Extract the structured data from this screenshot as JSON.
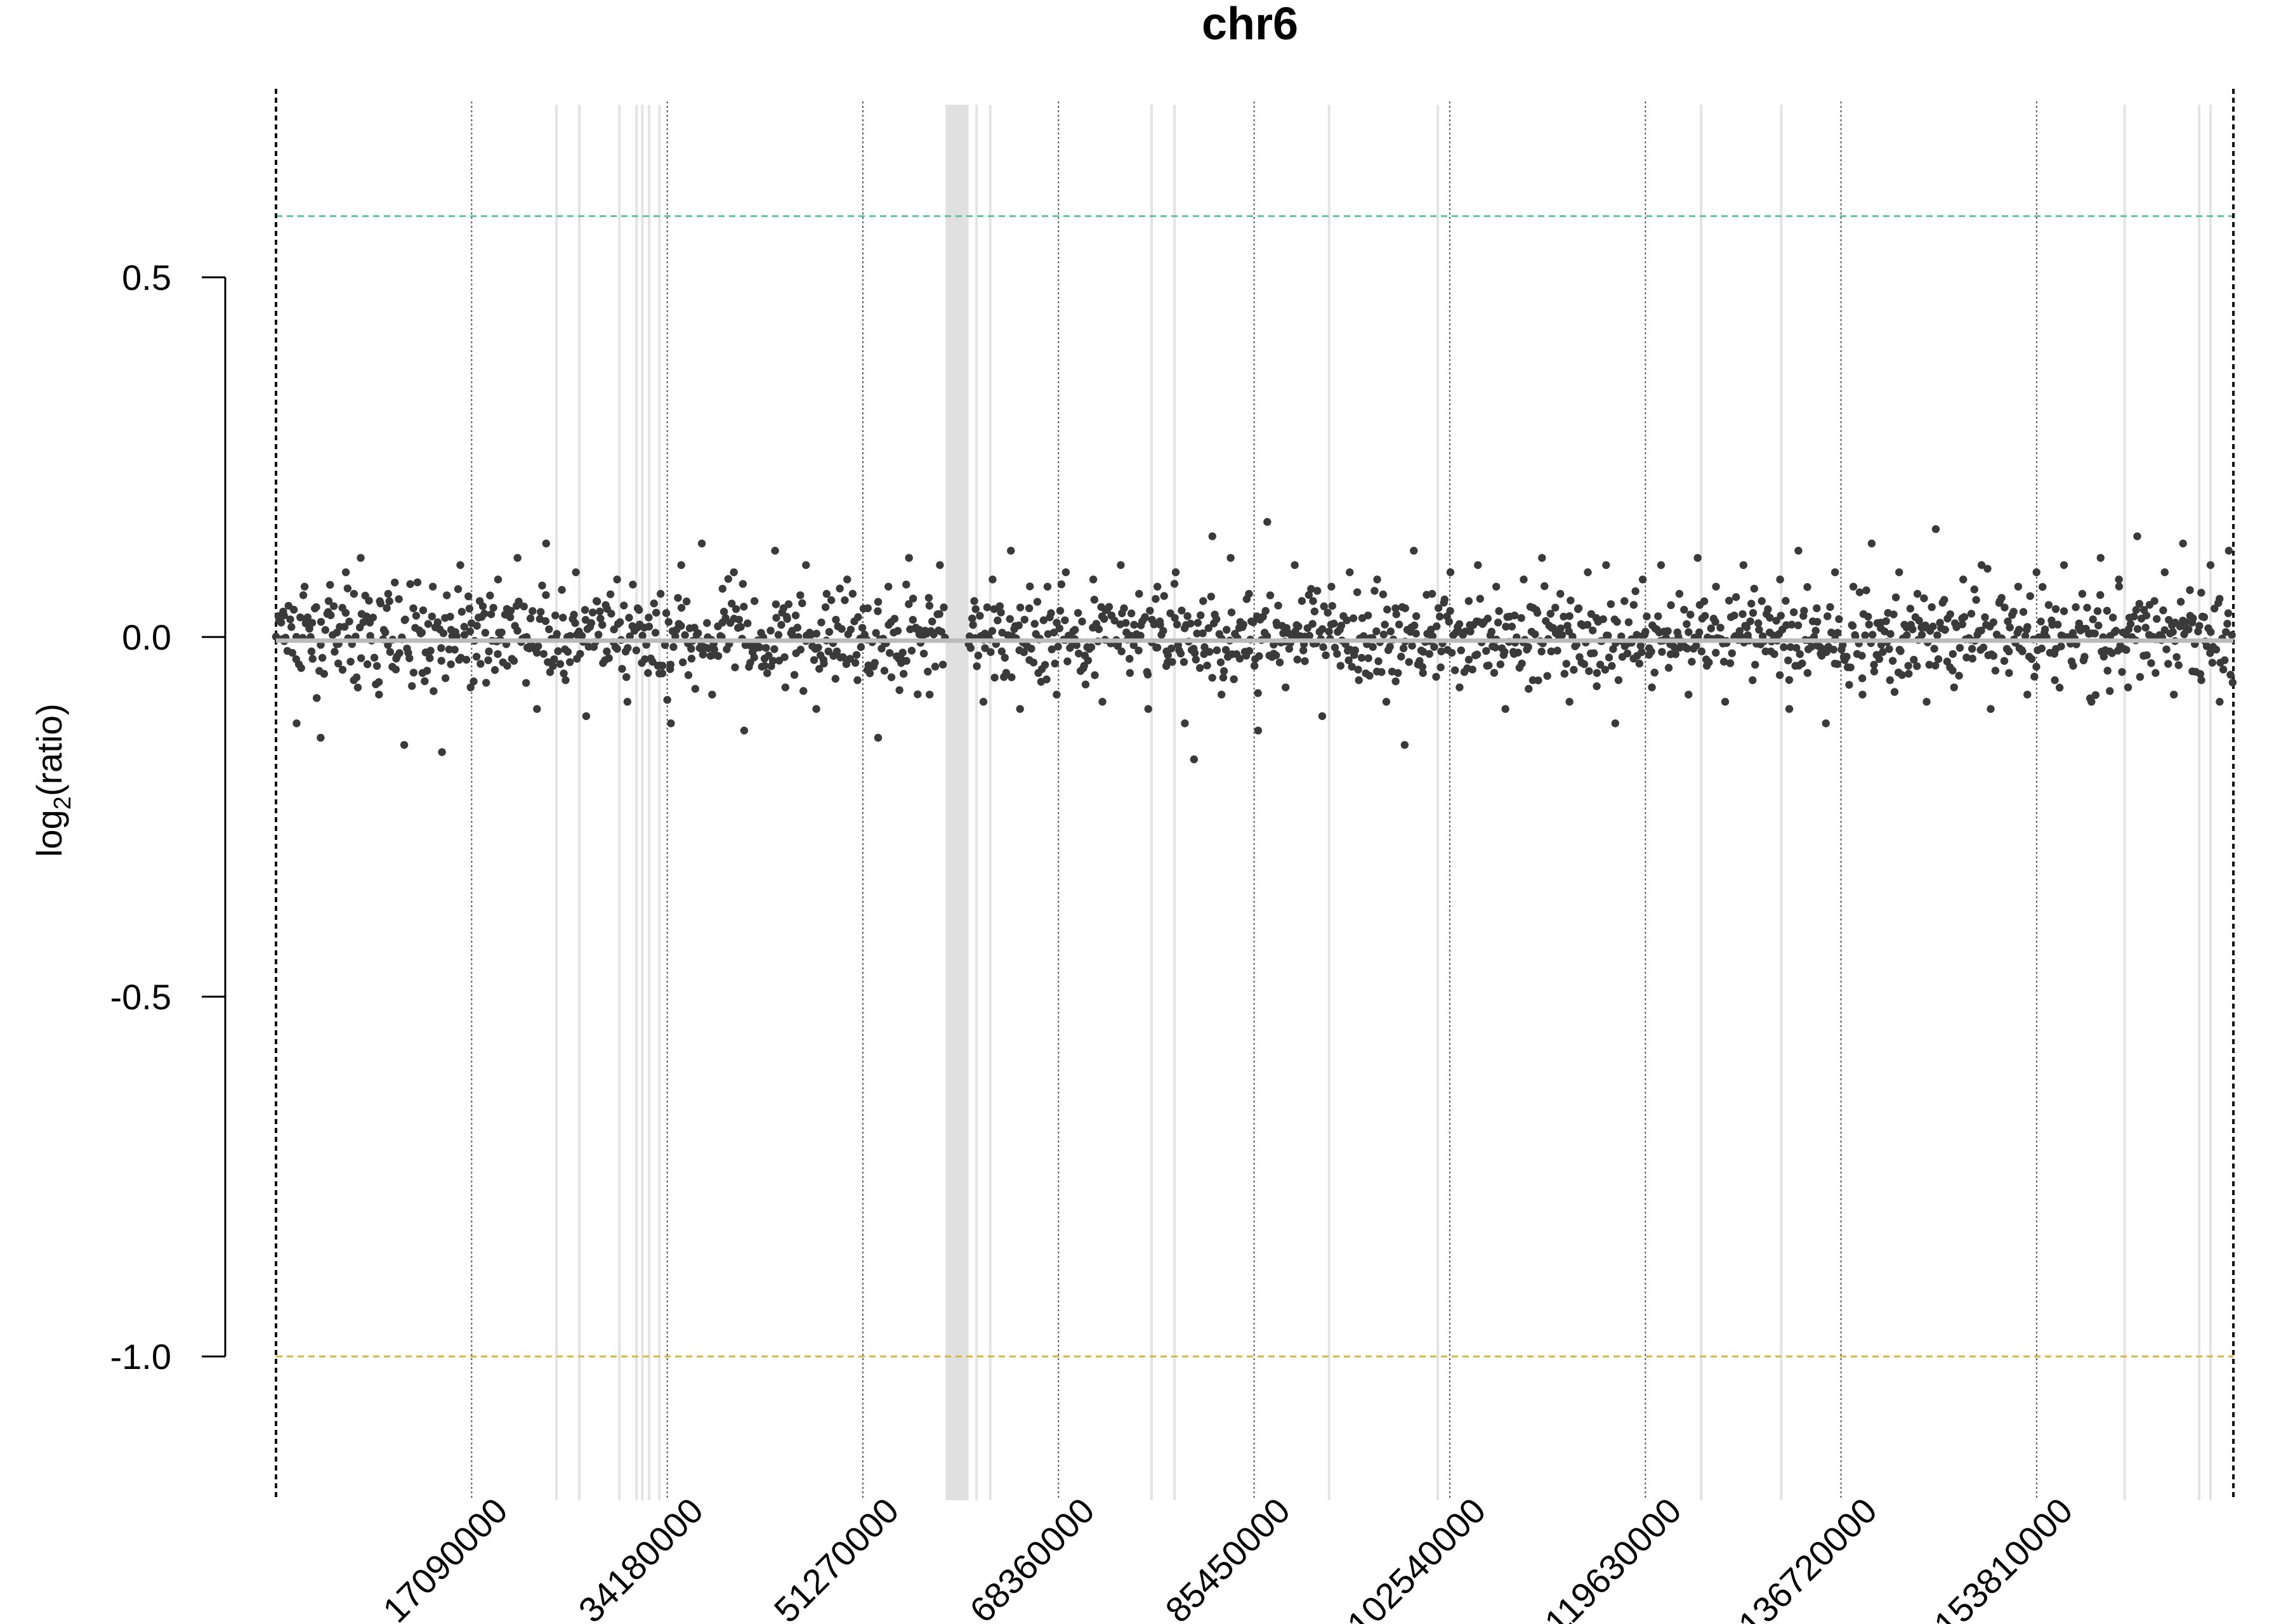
{
  "chart_data": {
    "type": "scatter",
    "title": "chr6",
    "ylabel_base": "log",
    "ylabel_sub": "2",
    "ylabel_rest": "(ratio)",
    "xlabel": "",
    "xlim": [
      0,
      171000000
    ],
    "ylim": [
      -1.2,
      0.74
    ],
    "yticks": [
      0.5,
      0.0,
      -0.5,
      -1.0
    ],
    "ytick_labels": [
      "0.5",
      "0.0",
      "-0.5",
      "-1.0"
    ],
    "xticks": [
      17090000,
      34180000,
      51270000,
      68360000,
      85450000,
      102540000,
      119630000,
      136720000,
      153810000
    ],
    "xtick_labels": [
      "17090000",
      "34180000",
      "51270000",
      "68360000",
      "85450000",
      "102540000",
      "119630000",
      "136720000",
      "153810000"
    ],
    "x_boundaries": [
      0,
      171000000
    ],
    "reference_lines": [
      {
        "y": 0.585,
        "color": "#5fc0a5",
        "style": "dashed"
      },
      {
        "y": -1.0,
        "color": "#d9b445",
        "style": "dashed"
      }
    ],
    "gap_lines": [
      24500000,
      26500000,
      30000000,
      31500000,
      32000000,
      32600000,
      33500000,
      61200000,
      62400000,
      76500000,
      78500000,
      92000000,
      101500000,
      124500000,
      131500000,
      161500000,
      168000000,
      169000000
    ],
    "gap_bands": [
      [
        58500000,
        60500000
      ]
    ],
    "grid": true,
    "segments": [
      {
        "x0": 0,
        "x1": 171000000,
        "y": -0.005,
        "color": "#bbbbbb"
      }
    ],
    "point_color": "#3a3a3a",
    "points_summary": {
      "count": 1650,
      "mean": 0.0,
      "sd": 0.055
    },
    "points": [
      [
        700000,
        0.03
      ],
      [
        1800000,
        -0.12
      ],
      [
        2500000,
        0.07
      ],
      [
        3100000,
        -0.02
      ],
      [
        3900000,
        -0.14
      ],
      [
        4600000,
        0.05
      ],
      [
        5300000,
        -0.01
      ],
      [
        6100000,
        0.09
      ],
      [
        6800000,
        -0.06
      ],
      [
        7400000,
        0.11
      ],
      [
        8200000,
        0.02
      ],
      [
        9000000,
        -0.08
      ],
      [
        9800000,
        0.06
      ],
      [
        10500000,
        -0.03
      ],
      [
        11200000,
        -0.15
      ],
      [
        12000000,
        0.04
      ],
      [
        12800000,
        -0.05
      ],
      [
        13700000,
        0.07
      ],
      [
        14500000,
        -0.16
      ],
      [
        15300000,
        0.01
      ],
      [
        16100000,
        0.1
      ],
      [
        17000000,
        -0.07
      ],
      [
        17800000,
        0.05
      ],
      [
        18600000,
        -0.02
      ],
      [
        19400000,
        0.08
      ],
      [
        20200000,
        -0.04
      ],
      [
        21100000,
        0.11
      ],
      [
        21900000,
        0.0
      ],
      [
        22800000,
        -0.1
      ],
      [
        23600000,
        0.13
      ],
      [
        24400000,
        0.03
      ],
      [
        25300000,
        -0.06
      ],
      [
        26200000,
        0.09
      ],
      [
        27100000,
        -0.11
      ],
      [
        28000000,
        0.05
      ],
      [
        28900000,
        -0.02
      ],
      [
        29800000,
        0.08
      ],
      [
        30700000,
        -0.09
      ],
      [
        31600000,
        0.04
      ],
      [
        32500000,
        -0.05
      ],
      [
        33600000,
        0.06
      ],
      [
        34500000,
        -0.12
      ],
      [
        35400000,
        0.1
      ],
      [
        36300000,
        -0.03
      ],
      [
        37200000,
        0.13
      ],
      [
        38100000,
        -0.08
      ],
      [
        39000000,
        0.02
      ],
      [
        40000000,
        0.09
      ],
      [
        40900000,
        -0.13
      ],
      [
        41800000,
        0.05
      ],
      [
        42700000,
        -0.04
      ],
      [
        43600000,
        0.12
      ],
      [
        44500000,
        -0.07
      ],
      [
        45400000,
        0.03
      ],
      [
        46300000,
        0.1
      ],
      [
        47200000,
        -0.1
      ],
      [
        48100000,
        0.06
      ],
      [
        49000000,
        -0.02
      ],
      [
        49900000,
        0.08
      ],
      [
        50800000,
        -0.06
      ],
      [
        51700000,
        0.04
      ],
      [
        52600000,
        -0.14
      ],
      [
        53500000,
        0.07
      ],
      [
        54400000,
        -0.03
      ],
      [
        55300000,
        0.11
      ],
      [
        56200000,
        0.01
      ],
      [
        57100000,
        -0.08
      ],
      [
        58000000,
        0.1
      ],
      [
        61000000,
        0.05
      ],
      [
        61800000,
        -0.09
      ],
      [
        62600000,
        0.08
      ],
      [
        63400000,
        -0.02
      ],
      [
        64200000,
        0.12
      ],
      [
        65000000,
        -0.1
      ],
      [
        65800000,
        0.04
      ],
      [
        66600000,
        -0.05
      ],
      [
        67400000,
        0.07
      ],
      [
        68200000,
        -0.08
      ],
      [
        69000000,
        0.09
      ],
      [
        69800000,
        0.01
      ],
      [
        70600000,
        -0.04
      ],
      [
        71400000,
        0.08
      ],
      [
        72200000,
        -0.09
      ],
      [
        73000000,
        0.03
      ],
      [
        73800000,
        0.1
      ],
      [
        74600000,
        -0.05
      ],
      [
        75400000,
        0.06
      ],
      [
        76200000,
        -0.1
      ],
      [
        77000000,
        0.07
      ],
      [
        77800000,
        -0.02
      ],
      [
        78600000,
        0.09
      ],
      [
        79400000,
        -0.12
      ],
      [
        80200000,
        -0.17
      ],
      [
        81000000,
        0.05
      ],
      [
        81800000,
        0.14
      ],
      [
        82600000,
        -0.08
      ],
      [
        83400000,
        0.11
      ],
      [
        84200000,
        -0.03
      ],
      [
        85000000,
        0.06
      ],
      [
        85800000,
        -0.13
      ],
      [
        86600000,
        0.16
      ],
      [
        87400000,
        0.02
      ],
      [
        88200000,
        -0.07
      ],
      [
        89000000,
        0.1
      ],
      [
        89800000,
        -0.01
      ],
      [
        90600000,
        0.05
      ],
      [
        91400000,
        -0.11
      ],
      [
        92200000,
        0.07
      ],
      [
        93000000,
        -0.04
      ],
      [
        93800000,
        0.09
      ],
      [
        94600000,
        -0.06
      ],
      [
        95400000,
        0.03
      ],
      [
        96200000,
        0.08
      ],
      [
        97000000,
        -0.09
      ],
      [
        97800000,
        0.04
      ],
      [
        98600000,
        -0.15
      ],
      [
        99400000,
        0.12
      ],
      [
        100200000,
        -0.05
      ],
      [
        101000000,
        0.06
      ],
      [
        101800000,
        -0.02
      ],
      [
        102600000,
        0.09
      ],
      [
        103400000,
        -0.07
      ],
      [
        104200000,
        0.05
      ],
      [
        105000000,
        0.1
      ],
      [
        105800000,
        -0.04
      ],
      [
        106600000,
        0.07
      ],
      [
        107400000,
        -0.1
      ],
      [
        108200000,
        0.03
      ],
      [
        109000000,
        0.08
      ],
      [
        109800000,
        -0.06
      ],
      [
        110600000,
        0.11
      ],
      [
        111400000,
        -0.02
      ],
      [
        112200000,
        0.06
      ],
      [
        113000000,
        -0.09
      ],
      [
        113800000,
        0.04
      ],
      [
        114600000,
        0.09
      ],
      [
        115400000,
        -0.05
      ],
      [
        116200000,
        0.1
      ],
      [
        117000000,
        -0.12
      ],
      [
        117800000,
        0.05
      ],
      [
        118600000,
        -0.03
      ],
      [
        119400000,
        0.08
      ],
      [
        120200000,
        -0.07
      ],
      [
        121000000,
        0.1
      ],
      [
        121800000,
        -0.01
      ],
      [
        122600000,
        0.06
      ],
      [
        123400000,
        -0.08
      ],
      [
        124200000,
        0.11
      ],
      [
        125000000,
        -0.04
      ],
      [
        125800000,
        0.07
      ],
      [
        126600000,
        -0.09
      ],
      [
        127400000,
        0.03
      ],
      [
        128200000,
        0.1
      ],
      [
        129000000,
        -0.06
      ],
      [
        129800000,
        0.05
      ],
      [
        130600000,
        -0.02
      ],
      [
        131400000,
        0.08
      ],
      [
        132200000,
        -0.1
      ],
      [
        133000000,
        0.12
      ],
      [
        133800000,
        -0.05
      ],
      [
        134600000,
        0.04
      ],
      [
        135400000,
        -0.12
      ],
      [
        136200000,
        0.09
      ],
      [
        137000000,
        -0.03
      ],
      [
        137800000,
        0.07
      ],
      [
        138600000,
        -0.08
      ],
      [
        139400000,
        0.13
      ],
      [
        140200000,
        0.02
      ],
      [
        141000000,
        -0.06
      ],
      [
        141800000,
        0.09
      ],
      [
        142600000,
        -0.04
      ],
      [
        143400000,
        0.06
      ],
      [
        144200000,
        -0.09
      ],
      [
        145000000,
        0.15
      ],
      [
        145800000,
        0.01
      ],
      [
        146600000,
        -0.07
      ],
      [
        147400000,
        0.08
      ],
      [
        148200000,
        -0.03
      ],
      [
        149000000,
        0.1
      ],
      [
        149800000,
        -0.1
      ],
      [
        150600000,
        0.05
      ],
      [
        151400000,
        -0.05
      ],
      [
        152200000,
        0.07
      ],
      [
        153000000,
        -0.08
      ],
      [
        153800000,
        0.09
      ],
      [
        154600000,
        0.0
      ],
      [
        155400000,
        -0.06
      ],
      [
        156200000,
        0.1
      ],
      [
        157000000,
        -0.04
      ],
      [
        157800000,
        0.06
      ],
      [
        158600000,
        -0.09
      ],
      [
        159400000,
        0.11
      ],
      [
        160200000,
        -0.02
      ],
      [
        161000000,
        0.08
      ],
      [
        161800000,
        -0.07
      ],
      [
        162600000,
        0.14
      ],
      [
        163400000,
        0.03
      ],
      [
        164200000,
        -0.05
      ],
      [
        165000000,
        0.09
      ],
      [
        165800000,
        -0.08
      ],
      [
        166600000,
        0.13
      ],
      [
        167400000,
        0.02
      ],
      [
        168200000,
        -0.06
      ],
      [
        169000000,
        0.1
      ],
      [
        169800000,
        -0.09
      ],
      [
        170600000,
        0.12
      ]
    ]
  }
}
